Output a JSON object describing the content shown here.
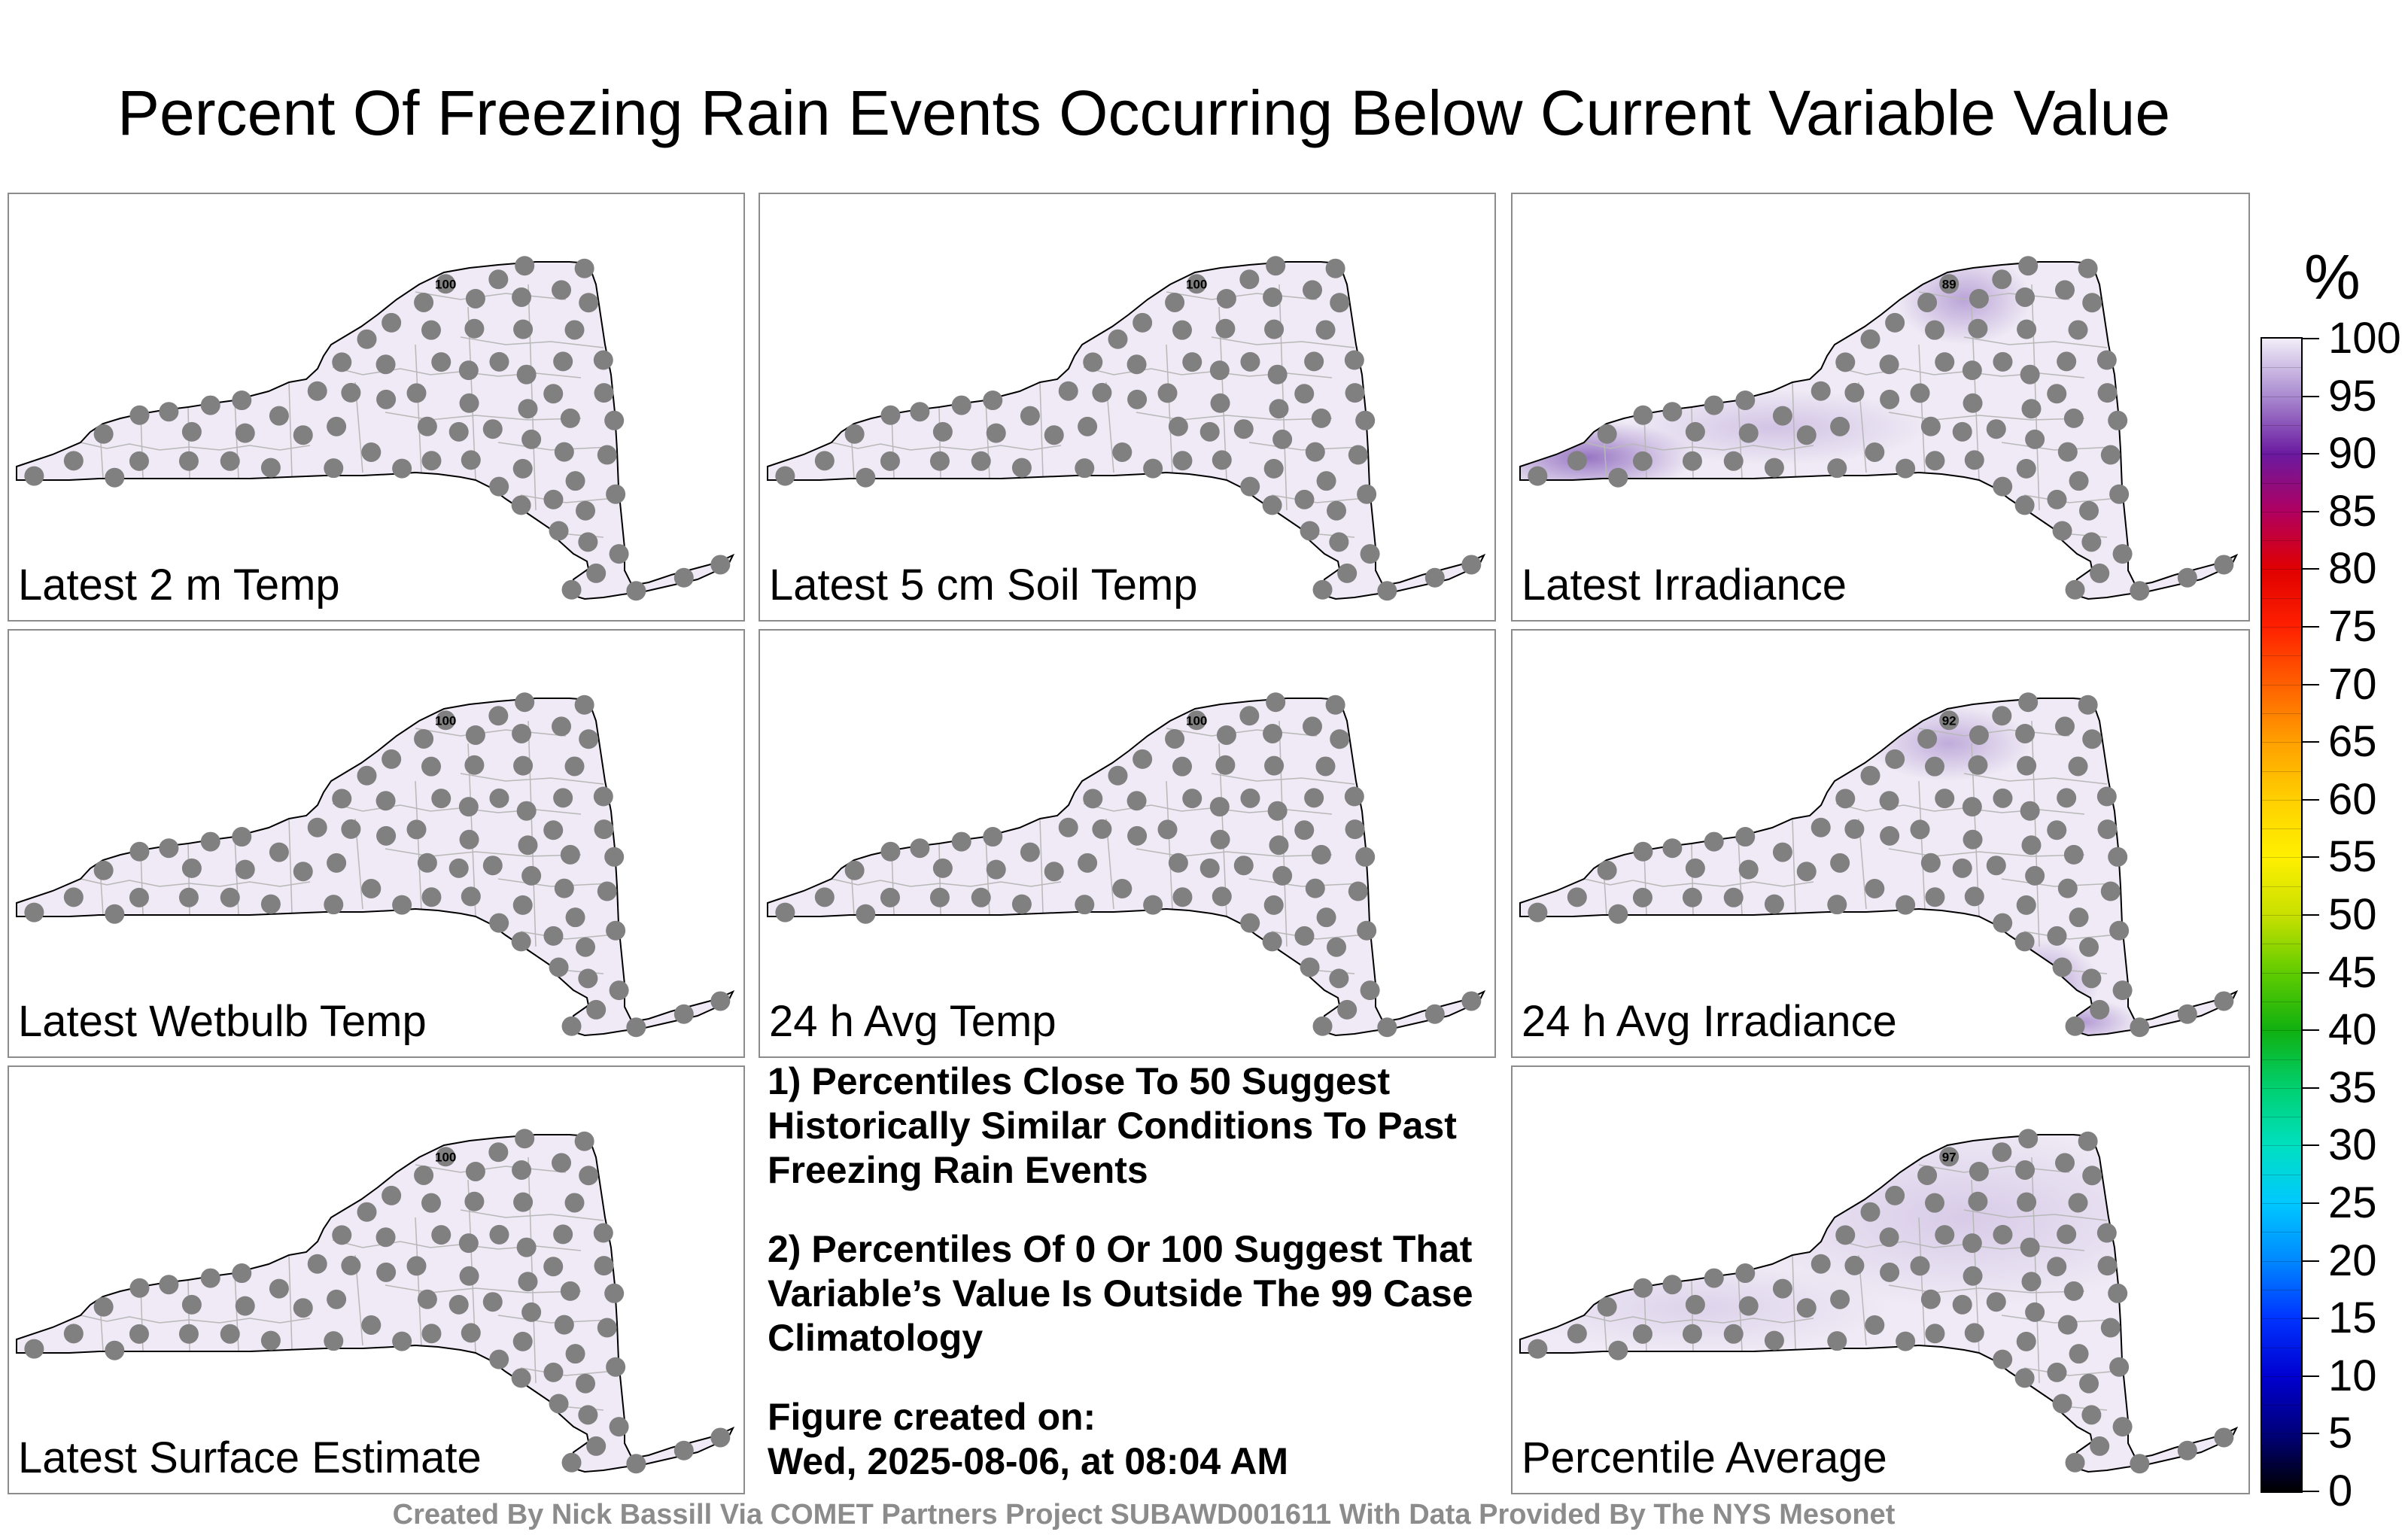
{
  "title": "Percent Of Freezing Rain Events Occurring Below Current Variable Value",
  "colors": {
    "state_fill": "#efeaf5",
    "station_marker": "#808080",
    "state_outline": "#000000",
    "county_line": "#b8b8b8",
    "anomaly_purple": "#7a4fb3"
  },
  "panels": [
    {
      "label": "Latest 2 m Temp",
      "min_value": "100"
    },
    {
      "label": "Latest 5 cm Soil Temp",
      "min_value": "100"
    },
    {
      "label": "Latest Irradiance",
      "min_value": "89"
    },
    {
      "label": "Latest Wetbulb Temp",
      "min_value": "100"
    },
    {
      "label": "24 h Avg Temp",
      "min_value": "100"
    },
    {
      "label": "24 h Avg Irradiance",
      "min_value": "92"
    },
    {
      "label": "Latest Surface Estimate",
      "min_value": "100"
    },
    {
      "label": "Percentile Average",
      "min_value": "97"
    }
  ],
  "notes": {
    "note1": "1) Percentiles Close To 50 Suggest Historically Similar Conditions To Past Freezing Rain Events",
    "note2": "2) Percentiles Of 0 Or 100 Suggest That Variable’s Value Is Outside The 99 Case Climatology",
    "created_label": "Figure created on:",
    "created_date": "Wed, 2025-08-06, at 08:04 AM"
  },
  "colorbar": {
    "unit": "%",
    "ticks": [
      "100",
      "95",
      "90",
      "85",
      "80",
      "75",
      "70",
      "65",
      "60",
      "55",
      "50",
      "45",
      "40",
      "35",
      "30",
      "25",
      "20",
      "15",
      "10",
      "5",
      "0"
    ]
  },
  "footer": "Created By Nick Bassill Via COMET Partners Project SUBAWD001611 With Data Provided By The NYS Mesonet"
}
